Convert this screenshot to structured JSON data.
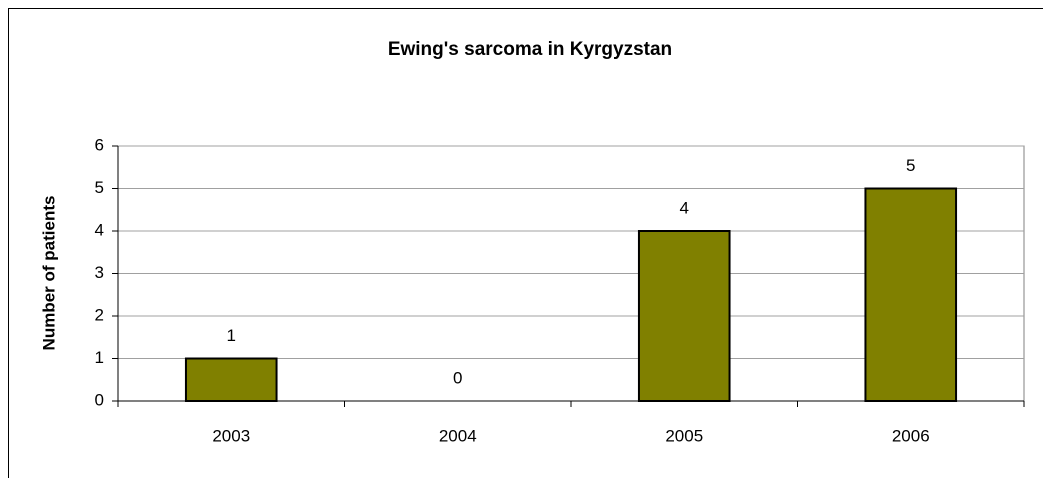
{
  "chart_data": {
    "type": "bar",
    "title": "Ewing's sarcoma in Kyrgyzstan",
    "y_label": "Number of patients",
    "categories": [
      "2003",
      "2004",
      "2005",
      "2006"
    ],
    "values": [
      1,
      0,
      4,
      5
    ],
    "color": "#808000",
    "ylim": [
      0,
      6
    ],
    "yticks": [
      0,
      1,
      2,
      3,
      4,
      5,
      6
    ],
    "grid": true,
    "data_labels": true
  }
}
